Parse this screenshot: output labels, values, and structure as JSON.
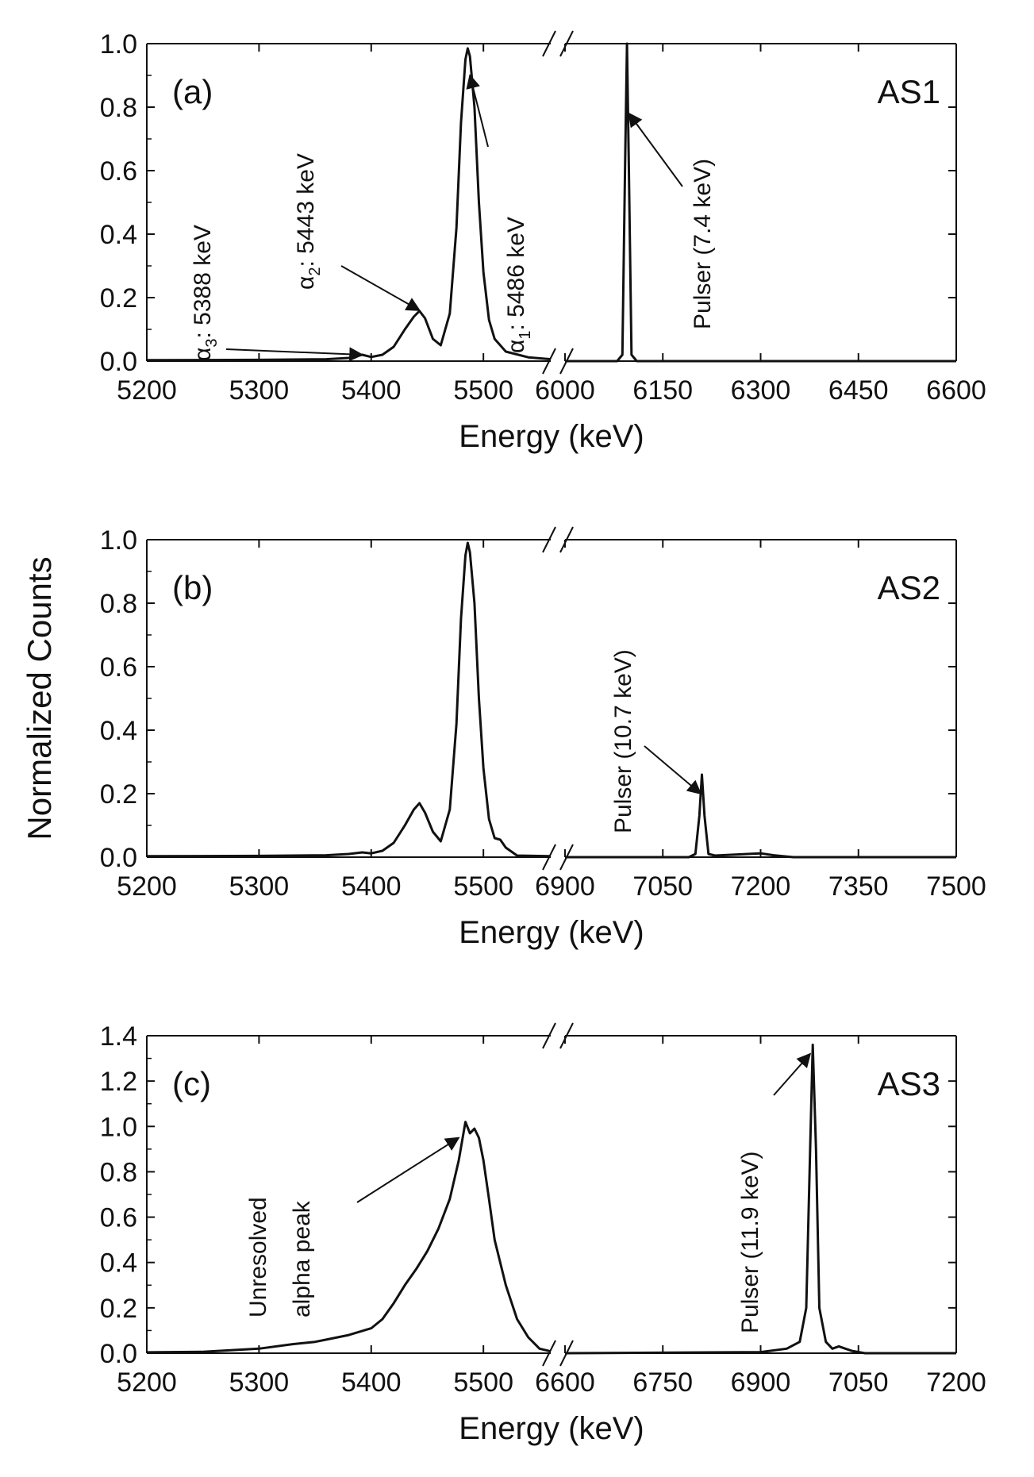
{
  "figure": {
    "ylabel": "Normalized Counts"
  },
  "chart_data": [
    {
      "type": "line",
      "panel_label": "(a)",
      "detector_label": "AS1",
      "xlabel": "Energy (keV)",
      "ylim": [
        0,
        1.0
      ],
      "yticks": [
        "0.0",
        "0.2",
        "0.4",
        "0.6",
        "0.8",
        "1.0"
      ],
      "xticks_left": [
        "5200",
        "5300",
        "5400",
        "5500"
      ],
      "xticks_right": [
        "6000",
        "6150",
        "6300",
        "6450",
        "6600"
      ],
      "xlim_left": [
        5200,
        5560
      ],
      "xlim_right": [
        6000,
        6600
      ],
      "series": [
        {
          "name": "alpha spectrum",
          "segment": "left",
          "x": [
            5200,
            5300,
            5360,
            5380,
            5392,
            5400,
            5410,
            5420,
            5430,
            5438,
            5443,
            5448,
            5455,
            5462,
            5470,
            5476,
            5480,
            5484,
            5486,
            5488,
            5492,
            5496,
            5500,
            5505,
            5510,
            5520,
            5540,
            5560
          ],
          "y": [
            0.003,
            0.004,
            0.006,
            0.01,
            0.02,
            0.013,
            0.02,
            0.045,
            0.1,
            0.14,
            0.158,
            0.135,
            0.07,
            0.05,
            0.15,
            0.42,
            0.75,
            0.95,
            0.985,
            0.96,
            0.8,
            0.5,
            0.28,
            0.13,
            0.07,
            0.03,
            0.012,
            0.006
          ]
        },
        {
          "name": "pulser",
          "segment": "right",
          "x": [
            6000,
            6080,
            6088,
            6092,
            6095,
            6098,
            6102,
            6110,
            6600
          ],
          "y": [
            0.0,
            0.0,
            0.02,
            0.6,
            1.0,
            0.6,
            0.02,
            0.0,
            0.0
          ]
        }
      ],
      "annotations": [
        {
          "base": "α",
          "sub": "3",
          "rest": ": 5388 keV",
          "x": 5392,
          "y": 0.02
        },
        {
          "base": "α",
          "sub": "2",
          "rest": ": 5443 keV",
          "x": 5443,
          "y": 0.16
        },
        {
          "base": "α",
          "sub": "1",
          "rest": ": 5486 keV",
          "x": 5488,
          "y": 0.9
        },
        {
          "text": "Pulser (7.4 keV)",
          "x": 6098,
          "y": 0.78
        }
      ]
    },
    {
      "type": "line",
      "panel_label": "(b)",
      "detector_label": "AS2",
      "xlabel": "Energy (keV)",
      "ylim": [
        0,
        1.0
      ],
      "yticks": [
        "0.0",
        "0.2",
        "0.4",
        "0.6",
        "0.8",
        "1.0"
      ],
      "xticks_left": [
        "5200",
        "5300",
        "5400",
        "5500"
      ],
      "xticks_right": [
        "6900",
        "7050",
        "7200",
        "7350",
        "7500"
      ],
      "xlim_left": [
        5200,
        5560
      ],
      "xlim_right": [
        6900,
        7500
      ],
      "series": [
        {
          "name": "alpha spectrum",
          "segment": "left",
          "x": [
            5200,
            5300,
            5360,
            5380,
            5392,
            5400,
            5410,
            5420,
            5430,
            5438,
            5443,
            5448,
            5455,
            5462,
            5470,
            5476,
            5480,
            5484,
            5486,
            5488,
            5492,
            5496,
            5500,
            5505,
            5510,
            5515,
            5520,
            5530,
            5560
          ],
          "y": [
            0.003,
            0.004,
            0.006,
            0.01,
            0.015,
            0.012,
            0.02,
            0.045,
            0.1,
            0.15,
            0.17,
            0.14,
            0.08,
            0.05,
            0.15,
            0.42,
            0.75,
            0.95,
            0.99,
            0.96,
            0.8,
            0.5,
            0.28,
            0.12,
            0.06,
            0.055,
            0.03,
            0.005,
            0.003
          ]
        },
        {
          "name": "pulser",
          "segment": "right",
          "x": [
            6900,
            7090,
            7100,
            7106,
            7110,
            7114,
            7120,
            7130,
            7180,
            7200,
            7220,
            7250,
            7500
          ],
          "y": [
            0.0,
            0.0,
            0.01,
            0.13,
            0.26,
            0.13,
            0.01,
            0.005,
            0.01,
            0.012,
            0.006,
            0.0,
            0.0
          ]
        }
      ],
      "annotations": [
        {
          "text": "Pulser (10.7 keV)",
          "x": 7108,
          "y": 0.2
        }
      ]
    },
    {
      "type": "line",
      "panel_label": "(c)",
      "detector_label": "AS3",
      "xlabel": "Energy (keV)",
      "ylim": [
        0,
        1.4
      ],
      "yticks": [
        "0.0",
        "0.2",
        "0.4",
        "0.6",
        "0.8",
        "1.0",
        "1.2",
        "1.4"
      ],
      "xticks_left": [
        "5200",
        "5300",
        "5400",
        "5500"
      ],
      "xticks_right": [
        "6600",
        "6750",
        "6900",
        "7050",
        "7200"
      ],
      "xlim_left": [
        5200,
        5560
      ],
      "xlim_right": [
        6600,
        7200
      ],
      "series": [
        {
          "name": "alpha spectrum",
          "segment": "left",
          "x": [
            5200,
            5250,
            5300,
            5330,
            5350,
            5360,
            5380,
            5400,
            5410,
            5420,
            5430,
            5440,
            5450,
            5460,
            5470,
            5478,
            5484,
            5488,
            5492,
            5496,
            5500,
            5505,
            5510,
            5520,
            5530,
            5540,
            5550,
            5560
          ],
          "y": [
            0.004,
            0.006,
            0.02,
            0.04,
            0.05,
            0.06,
            0.08,
            0.11,
            0.15,
            0.22,
            0.3,
            0.37,
            0.45,
            0.55,
            0.68,
            0.85,
            1.02,
            0.97,
            0.99,
            0.95,
            0.85,
            0.68,
            0.5,
            0.3,
            0.15,
            0.07,
            0.02,
            0.008
          ]
        },
        {
          "name": "pulser",
          "segment": "right",
          "x": [
            6600,
            6900,
            6940,
            6960,
            6970,
            6976,
            6980,
            6985,
            6990,
            7000,
            7010,
            7020,
            7030,
            7040,
            7060,
            7200
          ],
          "y": [
            0.0,
            0.005,
            0.02,
            0.05,
            0.2,
            0.9,
            1.36,
            0.9,
            0.2,
            0.05,
            0.02,
            0.03,
            0.02,
            0.01,
            0.0,
            0.0
          ]
        }
      ],
      "annotations": [
        {
          "lines": [
            "Unresolved",
            "alpha peak"
          ],
          "x": 5478,
          "y": 0.95
        },
        {
          "text": "Pulser (11.9 keV)",
          "x": 6976,
          "y": 1.32
        }
      ]
    }
  ]
}
